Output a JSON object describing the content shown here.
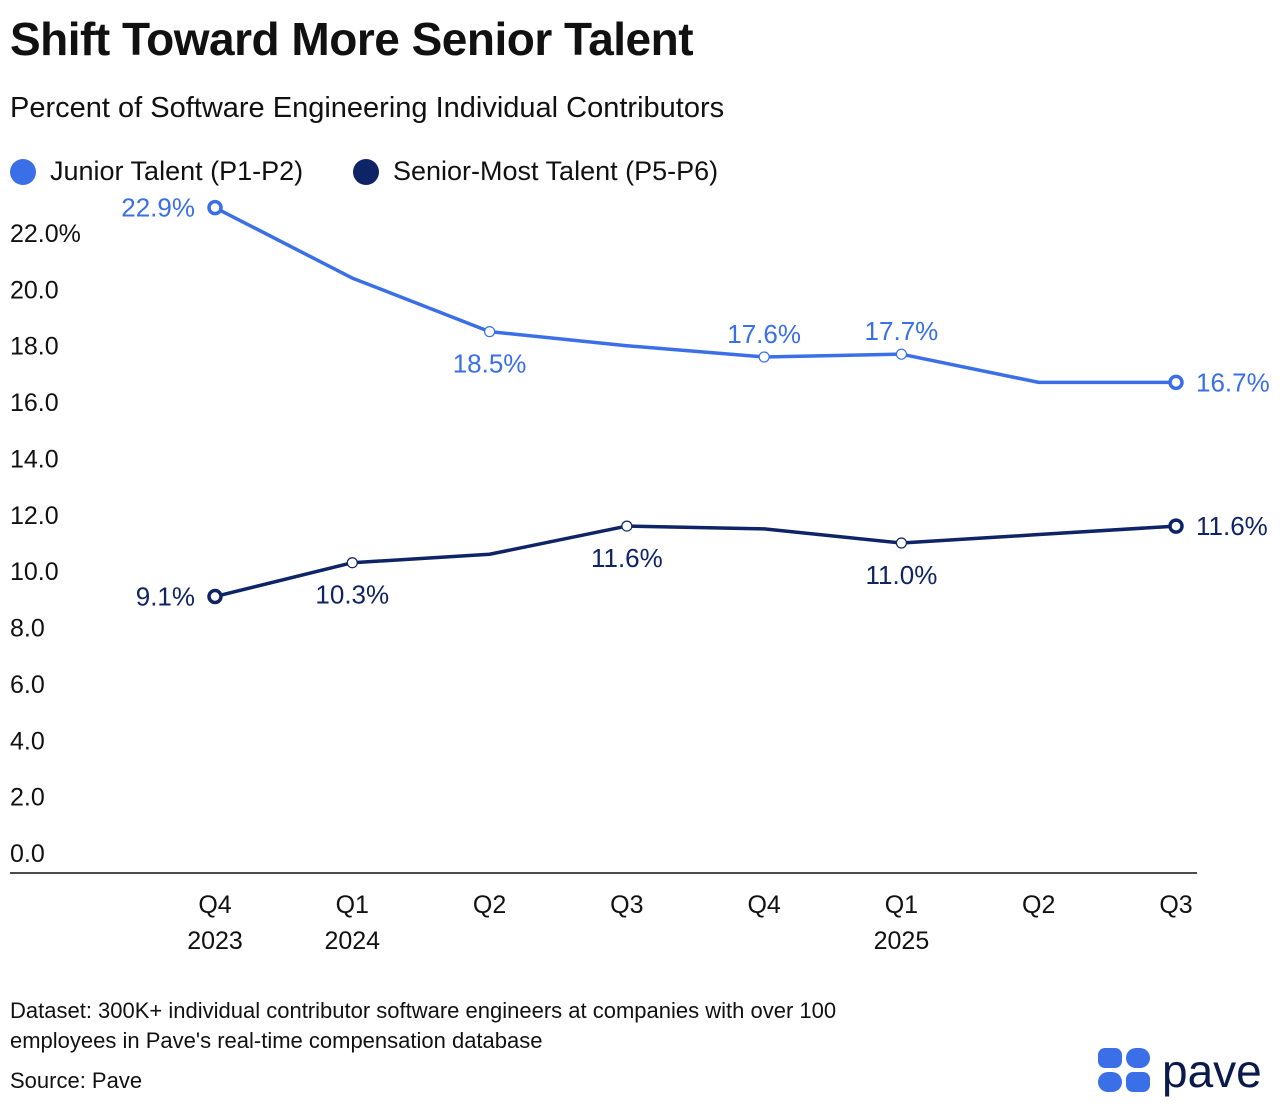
{
  "colors": {
    "junior": "#3a6fe8",
    "senior": "#0f2466",
    "axis": "#111111"
  },
  "chart_data": {
    "type": "line",
    "title": "Shift Toward More Senior Talent",
    "subtitle": "Percent of Software Engineering Individual Contributors",
    "categories": [
      [
        "Q4",
        "2023"
      ],
      [
        "Q1",
        "2024"
      ],
      [
        "Q2",
        ""
      ],
      [
        "Q3",
        ""
      ],
      [
        "Q4",
        ""
      ],
      [
        "Q1",
        "2025"
      ],
      [
        "Q2",
        ""
      ],
      [
        "Q3",
        ""
      ]
    ],
    "yticks": [
      "0.0",
      "2.0",
      "4.0",
      "6.0",
      "8.0",
      "10.0",
      "12.0",
      "14.0",
      "16.0",
      "18.0",
      "20.0",
      "22.0%"
    ],
    "ylim": [
      0,
      22
    ],
    "legend_position": "top-left",
    "grid": false,
    "series": [
      {
        "name": "Junior Talent (P1-P2)",
        "color": "#3a6fe8",
        "values": [
          22.9,
          20.4,
          18.5,
          18.0,
          17.6,
          17.7,
          16.7,
          16.7
        ],
        "labels": [
          "22.9%",
          null,
          "18.5%",
          null,
          "17.6%",
          "17.7%",
          null,
          "16.7%"
        ]
      },
      {
        "name": "Senior-Most Talent (P5-P6)",
        "color": "#0f2466",
        "values": [
          9.1,
          10.3,
          10.6,
          11.6,
          11.5,
          11.0,
          11.3,
          11.6
        ],
        "labels": [
          "9.1%",
          "10.3%",
          null,
          "11.6%",
          null,
          "11.0%",
          null,
          "11.6%"
        ]
      }
    ]
  },
  "footer": {
    "dataset_line1": "Dataset: 300K+ individual contributor software engineers at companies with over 100",
    "dataset_line2": "employees in Pave's real-time compensation database",
    "source": "Source: Pave"
  },
  "logo": {
    "word": "pave"
  }
}
